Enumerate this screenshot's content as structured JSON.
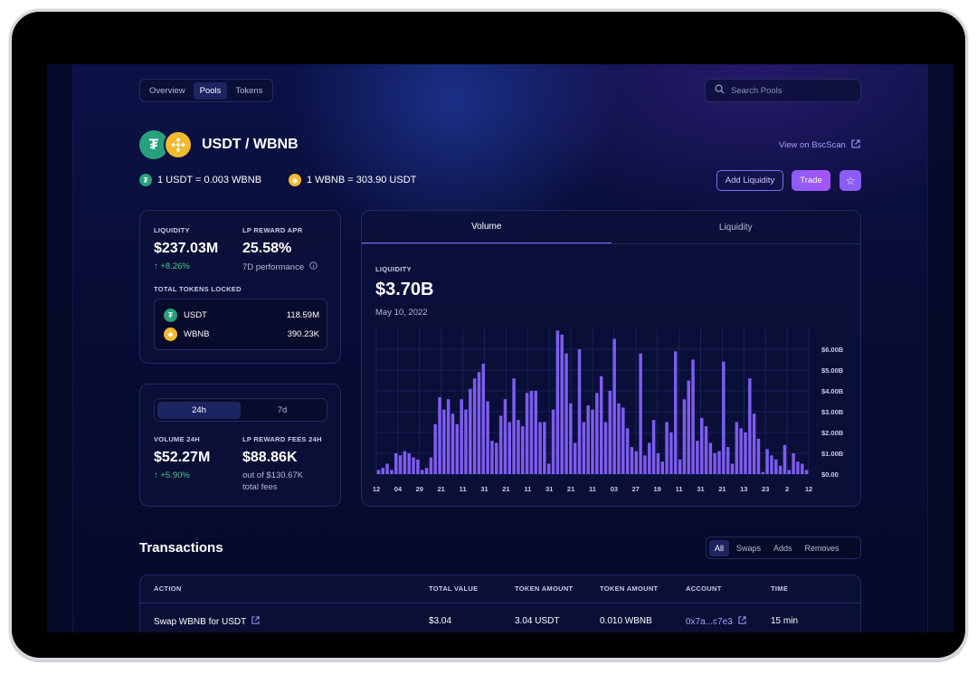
{
  "nav": {
    "tabs": [
      {
        "label": "Overview",
        "active": false
      },
      {
        "label": "Pools",
        "active": true
      },
      {
        "label": "Tokens",
        "active": false
      }
    ]
  },
  "search": {
    "placeholder": "Search Pools"
  },
  "pair": {
    "title": "USDT / WBNB",
    "view_link": "View on BscScan",
    "rate_1": "1 USDT = 0.003 WBNB",
    "rate_2": "1 WBNB = 303.90 USDT",
    "token_a_icon": "tether-icon",
    "token_b_icon": "bnb-icon"
  },
  "actions": {
    "add_liquidity": "Add Liquidity",
    "trade": "Trade",
    "favorite_icon": "star-icon"
  },
  "stats": {
    "liquidity_label": "LIQUIDITY",
    "liquidity_value": "$237.03M",
    "liquidity_change": "↑  +8.26%",
    "apr_label": "LP REWARD APR",
    "apr_value": "25.58%",
    "apr_note": "7D performance",
    "locked_label": "TOTAL TOKENS LOCKED",
    "locked": [
      {
        "symbol": "USDT",
        "amount": "118.59M"
      },
      {
        "symbol": "WBNB",
        "amount": "390.23K"
      }
    ]
  },
  "volume_card": {
    "periods": [
      {
        "label": "24h",
        "active": true
      },
      {
        "label": "7d",
        "active": false
      }
    ],
    "volume_label": "VOLUME 24H",
    "volume_value": "$52.27M",
    "volume_change": "↑  +5.90%",
    "fees_label": "LP REWARD FEES 24H",
    "fees_value": "$88.86K",
    "fees_note_1": "out of $130.67K",
    "fees_note_2": "total fees"
  },
  "chart_tabs": [
    {
      "label": "Volume",
      "active": true
    },
    {
      "label": "Liquidity",
      "active": false
    }
  ],
  "chart_data": {
    "type": "bar",
    "label": "LIQUIDITY",
    "value": "$3.70B",
    "date": "May 10, 2022",
    "x_tick_labels": [
      "12",
      "04",
      "29",
      "21",
      "11",
      "31",
      "21",
      "11",
      "31",
      "21",
      "11",
      "03",
      "27",
      "19",
      "11",
      "31",
      "21",
      "13",
      "23",
      "2",
      "12"
    ],
    "y_tick_labels": [
      "$0.00",
      "$1.00B",
      "$2.00B",
      "$3.00B",
      "$4.00B",
      "$5.00B",
      "$6.00B"
    ],
    "ylim": [
      0,
      7.0
    ],
    "unit": "B",
    "color": "#7e5cf0",
    "values": [
      0.2,
      0.3,
      0.5,
      0.2,
      1.0,
      0.9,
      1.1,
      1.0,
      0.8,
      0.7,
      0.2,
      0.3,
      0.8,
      2.4,
      3.7,
      3.1,
      3.6,
      2.9,
      2.4,
      3.6,
      3.1,
      4.1,
      4.6,
      4.9,
      5.3,
      3.5,
      1.6,
      1.5,
      2.8,
      3.6,
      2.5,
      4.6,
      2.6,
      2.3,
      3.9,
      4.0,
      4.0,
      2.5,
      2.5,
      0.5,
      3.1,
      6.9,
      6.7,
      5.8,
      3.4,
      1.5,
      6.0,
      2.5,
      3.3,
      3.1,
      3.9,
      4.7,
      2.5,
      4.0,
      6.5,
      3.4,
      3.2,
      2.2,
      1.3,
      1.1,
      5.8,
      0.9,
      1.5,
      2.6,
      1.0,
      0.6,
      2.5,
      2.0,
      5.9,
      0.7,
      3.6,
      4.5,
      5.5,
      1.6,
      2.7,
      2.3,
      1.5,
      1.0,
      1.1,
      5.4,
      1.3,
      0.5,
      2.5,
      2.2,
      2.0,
      4.6,
      2.9,
      1.7,
      0.1,
      1.2,
      0.9,
      0.7,
      0.4,
      1.4,
      0.2,
      1.0,
      0.6,
      0.5,
      0.2
    ]
  },
  "transactions": {
    "title": "Transactions",
    "filters": [
      {
        "label": "All",
        "active": true
      },
      {
        "label": "Swaps",
        "active": false
      },
      {
        "label": "Adds",
        "active": false
      },
      {
        "label": "Removes",
        "active": false
      }
    ],
    "columns": [
      "ACTION",
      "TOTAL VALUE",
      "TOKEN AMOUNT",
      "TOKEN AMOUNT",
      "ACCOUNT",
      "TIME"
    ],
    "rows": [
      {
        "action": "Swap WBNB for USDT",
        "total_value": "$3.04",
        "token_a": "3.04 USDT",
        "token_b": "0.010 WBNB",
        "account": "0x7a...c7e3",
        "time": "15 min"
      }
    ]
  }
}
